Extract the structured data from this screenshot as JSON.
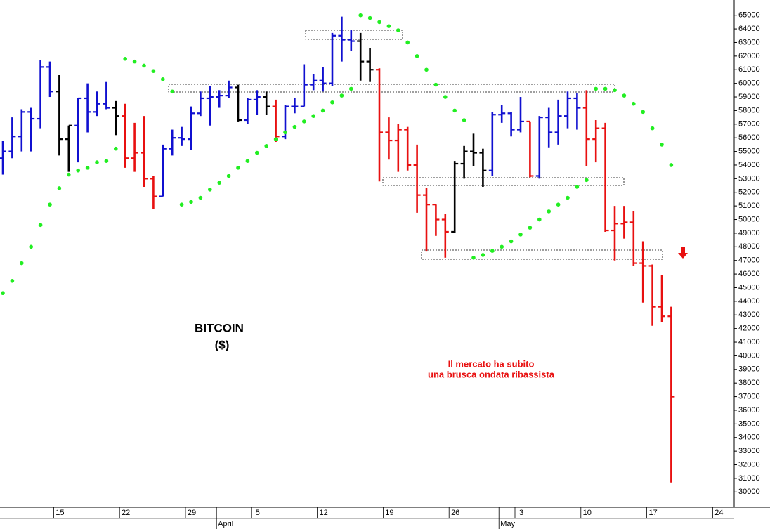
{
  "chart_data": {
    "type": "ohlc",
    "title": "BITCOIN",
    "subtitle": "($)",
    "annotation": [
      "Il mercato ha subito",
      "una brusca ondata ribassista"
    ],
    "categories": [
      null,
      null,
      null,
      null,
      null,
      null,
      "15",
      null,
      null,
      null,
      null,
      null,
      null,
      "22",
      null,
      null,
      null,
      null,
      null,
      null,
      "29",
      null,
      null,
      null,
      null,
      null,
      null,
      "5",
      null,
      null,
      null,
      null,
      null,
      null,
      "12",
      null,
      null,
      null,
      null,
      null,
      null,
      "19",
      null,
      null,
      null,
      null,
      null,
      null,
      "26",
      null,
      null,
      null,
      null,
      null,
      null,
      "3",
      null,
      null,
      null,
      null,
      null,
      null,
      "10",
      null,
      null,
      null,
      null,
      null,
      null,
      "17",
      null,
      null,
      null,
      null,
      null,
      null,
      "24"
    ],
    "months": [
      {
        "value": 23,
        "label": "April"
      },
      {
        "value": 53,
        "label": "May"
      }
    ],
    "open": [
      54500,
      55000,
      56100,
      57900,
      57400,
      61200,
      59400,
      55900,
      56900,
      58900,
      57900,
      58500,
      58200,
      57600,
      54500,
      54900,
      53000,
      51700,
      55200,
      56000,
      55900,
      57800,
      58900,
      59000,
      59100,
      59700,
      57300,
      58800,
      59000,
      58300,
      56100,
      58300,
      58300,
      59900,
      60200,
      60000,
      63500,
      63200,
      63100,
      61600,
      61000,
      56400,
      55800,
      56600,
      54000,
      51800,
      51100,
      50000,
      49100,
      54100,
      55000,
      54900,
      53600,
      57700,
      57800,
      56600,
      57200,
      53200,
      57500,
      56400,
      57600,
      58900,
      58200,
      55900,
      56700,
      49200,
      49700,
      49800,
      46800,
      46600,
      43600,
      42900,
      null,
      null,
      null,
      null,
      null
    ],
    "high": [
      55800,
      57500,
      58100,
      58200,
      61700,
      61600,
      60600,
      56900,
      58900,
      60000,
      59400,
      60100,
      58700,
      58500,
      57100,
      57600,
      53200,
      55500,
      56600,
      56800,
      58300,
      59400,
      59800,
      59500,
      60200,
      59900,
      58900,
      59500,
      59400,
      58800,
      58400,
      58900,
      61400,
      60700,
      61200,
      63700,
      64900,
      63900,
      63700,
      62600,
      61100,
      57500,
      57000,
      56800,
      55500,
      52300,
      51100,
      50400,
      54300,
      55400,
      56300,
      55200,
      57900,
      58400,
      57900,
      59000,
      57200,
      57600,
      58200,
      58800,
      59400,
      59300,
      59500,
      57300,
      57100,
      51000,
      51000,
      50600,
      48400,
      46700,
      45900,
      43600,
      null,
      null,
      null,
      null,
      null
    ],
    "low": [
      53300,
      54500,
      55000,
      55000,
      56700,
      59000,
      54700,
      53500,
      54200,
      56400,
      57600,
      58100,
      56200,
      53800,
      53500,
      52400,
      50800,
      51700,
      54700,
      55400,
      55100,
      57600,
      56900,
      58200,
      58900,
      57200,
      57000,
      57700,
      57700,
      55700,
      55900,
      57800,
      58300,
      59500,
      59400,
      59800,
      61600,
      62400,
      60200,
      60100,
      52800,
      54400,
      53500,
      53600,
      50500,
      47700,
      48800,
      47200,
      49000,
      53000,
      53900,
      52400,
      53200,
      57100,
      56100,
      56400,
      53100,
      53000,
      55300,
      55500,
      56700,
      56600,
      53900,
      54200,
      49100,
      47000,
      48600,
      46600,
      43900,
      42200,
      42500,
      30700,
      null,
      null,
      null,
      null,
      null
    ],
    "close": [
      55000,
      56100,
      57900,
      57400,
      61200,
      59400,
      55900,
      56900,
      58900,
      57900,
      58500,
      58200,
      57600,
      54500,
      54900,
      53000,
      51700,
      55200,
      56000,
      55900,
      57800,
      58900,
      59000,
      59100,
      59700,
      57300,
      58800,
      59000,
      58300,
      56100,
      58300,
      58300,
      59900,
      60200,
      60000,
      63500,
      63200,
      63100,
      61600,
      61000,
      56400,
      55800,
      56600,
      54000,
      51800,
      51100,
      50000,
      49100,
      54100,
      55000,
      54900,
      53600,
      57700,
      57800,
      56600,
      57200,
      53200,
      57500,
      56400,
      57600,
      58900,
      58200,
      55900,
      56700,
      49200,
      49700,
      49800,
      46800,
      46600,
      43600,
      42900,
      37000,
      null,
      null,
      null,
      null,
      null
    ],
    "bar_colors": [
      "#1010d0",
      "#1010d0",
      "#1010d0",
      "#1010d0",
      "#1010d0",
      "#1010d0",
      "#000000",
      "#000000",
      "#1010d0",
      "#1010d0",
      "#1010d0",
      "#1010d0",
      "#000000",
      "#e81010",
      "#e81010",
      "#e81010",
      "#e81010",
      "#1010d0",
      "#1010d0",
      "#1010d0",
      "#1010d0",
      "#1010d0",
      "#1010d0",
      "#1010d0",
      "#1010d0",
      "#000000",
      "#1010d0",
      "#1010d0",
      "#000000",
      "#e81010",
      "#1010d0",
      "#1010d0",
      "#1010d0",
      "#1010d0",
      "#1010d0",
      "#1010d0",
      "#1010d0",
      "#1010d0",
      "#000000",
      "#000000",
      "#e81010",
      "#e81010",
      "#e81010",
      "#e81010",
      "#e81010",
      "#e81010",
      "#e81010",
      "#e81010",
      "#000000",
      "#000000",
      "#000000",
      "#000000",
      "#1010d0",
      "#1010d0",
      "#1010d0",
      "#1010d0",
      "#e81010",
      "#1010d0",
      "#1010d0",
      "#1010d0",
      "#1010d0",
      "#1010d0",
      "#e81010",
      "#e81010",
      "#e81010",
      "#e81010",
      "#e81010",
      "#e81010",
      "#e81010",
      "#e81010",
      "#e81010",
      "#e81010",
      null,
      null,
      null,
      null,
      null
    ],
    "sar": {
      "color": "#22ee22",
      "values": [
        44600,
        45500,
        46800,
        48000,
        49600,
        51100,
        52300,
        53300,
        53600,
        53800,
        54200,
        54300,
        55200,
        61800,
        61600,
        61300,
        60900,
        60300,
        59400,
        51100,
        51300,
        51600,
        52200,
        52700,
        53200,
        53800,
        54300,
        54900,
        55400,
        55900,
        56400,
        56800,
        57200,
        57600,
        58000,
        58600,
        59100,
        59600,
        65000,
        64800,
        64500,
        64200,
        63900,
        63000,
        62000,
        61000,
        59900,
        59000,
        58000,
        57300,
        47200,
        47400,
        47700,
        48000,
        48400,
        48900,
        49400,
        50000,
        50600,
        51100,
        51600,
        52400,
        52900,
        59600,
        59600,
        59500,
        59100,
        58500,
        57900,
        56700,
        55500,
        54000,
        null,
        null,
        null,
        null,
        null
      ]
    },
    "ylim": [
      29500,
      65500
    ],
    "yticks": [
      30000,
      31000,
      32000,
      33000,
      34000,
      35000,
      36000,
      37000,
      38000,
      39000,
      40000,
      41000,
      42000,
      43000,
      44000,
      45000,
      46000,
      47000,
      48000,
      49000,
      50000,
      51000,
      52000,
      53000,
      54000,
      55000,
      56000,
      57000,
      58000,
      59000,
      60000,
      61000,
      62000,
      63000,
      64000,
      65000
    ],
    "grid": false
  }
}
